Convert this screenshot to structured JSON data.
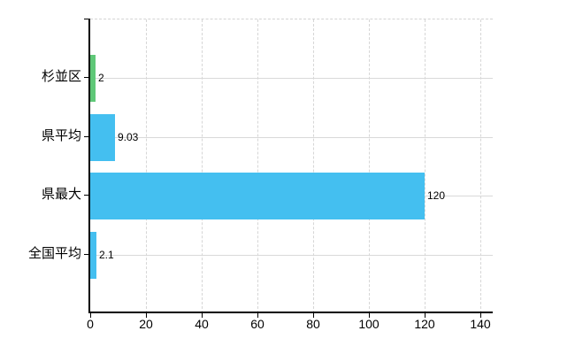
{
  "chart_data": {
    "type": "bar",
    "orientation": "horizontal",
    "title": "",
    "xlabel": "",
    "ylabel": "",
    "categories": [
      "杉並区",
      "県平均",
      "県最大",
      "全国平均"
    ],
    "values": [
      2,
      9.03,
      120,
      2.1
    ],
    "value_labels": [
      "2",
      "9.03",
      "120",
      "2.1"
    ],
    "bar_colors": [
      "#5fc878",
      "#44bff0",
      "#44bff0",
      "#44bff0"
    ],
    "xlim": [
      0,
      140
    ],
    "xtick_values": [
      0,
      20,
      40,
      60,
      80,
      100,
      120,
      140
    ],
    "xtick_labels": [
      "0",
      "20",
      "40",
      "60",
      "80",
      "100",
      "120",
      "140"
    ],
    "grid": "on",
    "legend": "none"
  },
  "colors": {
    "bar_blue": "#44bff0",
    "bar_green": "#5fc878",
    "gridline_solid": "#d9d9d9",
    "gridline_dashed": "#d6d6d6",
    "axis": "#000000",
    "text": "#000000",
    "background": "#ffffff"
  }
}
